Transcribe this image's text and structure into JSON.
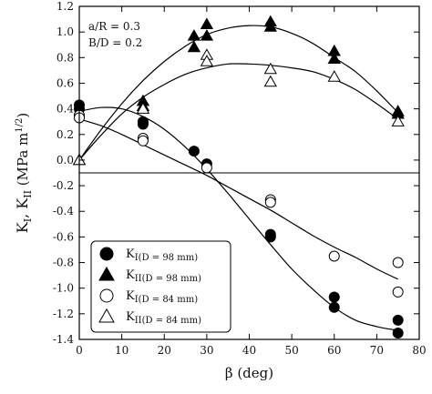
{
  "chart_data": {
    "type": "scatter",
    "title": "",
    "xlabel": "β (deg)",
    "ylabel": "K_I, K_II (MPa m^1/2)",
    "xlim": [
      0,
      80
    ],
    "ylim": [
      -1.4,
      1.2
    ],
    "xticks": [
      0,
      10,
      20,
      30,
      40,
      50,
      60,
      70,
      80
    ],
    "yticks": [
      -1.4,
      -1.2,
      -1.0,
      -0.8,
      -0.6,
      -0.4,
      -0.2,
      0.0,
      0.2,
      0.4,
      0.6,
      0.8,
      1.0,
      1.2
    ],
    "ytick_labels": [
      "-1.4",
      "-1.2",
      "-1.0",
      "-0.8",
      "-0.6",
      "-0.4",
      "-0.2",
      "0.0",
      "0.2",
      "0.4",
      "0.6",
      "0.8",
      "1.0",
      "1.2"
    ],
    "reference_line_y": -0.1,
    "annotations": [
      "a/R = 0.3",
      "B/D = 0.2"
    ],
    "legend_position": "bottom-left",
    "series": [
      {
        "name": "K_I(D = 98 mm)",
        "marker": "filled-circle",
        "points": [
          [
            0,
            0.43
          ],
          [
            0,
            0.4
          ],
          [
            15,
            0.3
          ],
          [
            15,
            0.28
          ],
          [
            27,
            0.07
          ],
          [
            30,
            -0.03
          ],
          [
            45,
            -0.58
          ],
          [
            45,
            -0.6
          ],
          [
            60,
            -1.07
          ],
          [
            60,
            -1.15
          ],
          [
            75,
            -1.25
          ],
          [
            75,
            -1.35
          ]
        ],
        "fit": [
          [
            0,
            0.38
          ],
          [
            5,
            0.41
          ],
          [
            10,
            0.4
          ],
          [
            15,
            0.34
          ],
          [
            20,
            0.24
          ],
          [
            25,
            0.1
          ],
          [
            30,
            -0.07
          ],
          [
            35,
            -0.26
          ],
          [
            40,
            -0.46
          ],
          [
            45,
            -0.66
          ],
          [
            50,
            -0.85
          ],
          [
            55,
            -1.01
          ],
          [
            60,
            -1.15
          ],
          [
            65,
            -1.25
          ],
          [
            70,
            -1.3
          ],
          [
            75,
            -1.33
          ]
        ]
      },
      {
        "name": "K_II(D = 98 mm)",
        "marker": "filled-triangle",
        "points": [
          [
            0,
            0.0
          ],
          [
            15,
            0.46
          ],
          [
            15,
            0.42
          ],
          [
            27,
            0.97
          ],
          [
            27,
            0.88
          ],
          [
            30,
            1.06
          ],
          [
            30,
            0.97
          ],
          [
            45,
            1.08
          ],
          [
            45,
            1.04
          ],
          [
            60,
            0.85
          ],
          [
            60,
            0.79
          ],
          [
            75,
            0.38
          ],
          [
            75,
            0.36
          ]
        ],
        "fit": [
          [
            0,
            0.0
          ],
          [
            5,
            0.23
          ],
          [
            10,
            0.44
          ],
          [
            15,
            0.62
          ],
          [
            20,
            0.77
          ],
          [
            25,
            0.89
          ],
          [
            30,
            0.98
          ],
          [
            35,
            1.03
          ],
          [
            40,
            1.05
          ],
          [
            45,
            1.04
          ],
          [
            50,
            0.99
          ],
          [
            55,
            0.91
          ],
          [
            60,
            0.8
          ],
          [
            65,
            0.69
          ],
          [
            70,
            0.54
          ],
          [
            75,
            0.37
          ]
        ]
      },
      {
        "name": "K_I(D = 84 mm)",
        "marker": "open-circle",
        "points": [
          [
            0,
            0.35
          ],
          [
            0,
            0.33
          ],
          [
            15,
            0.17
          ],
          [
            15,
            0.15
          ],
          [
            30,
            -0.06
          ],
          [
            45,
            -0.31
          ],
          [
            45,
            -0.33
          ],
          [
            60,
            -0.75
          ],
          [
            75,
            -0.8
          ],
          [
            75,
            -1.03
          ]
        ],
        "fit": [
          [
            0,
            0.32
          ],
          [
            5,
            0.27
          ],
          [
            10,
            0.2
          ],
          [
            15,
            0.12
          ],
          [
            20,
            0.04
          ],
          [
            25,
            -0.04
          ],
          [
            30,
            -0.12
          ],
          [
            35,
            -0.21
          ],
          [
            40,
            -0.3
          ],
          [
            45,
            -0.39
          ],
          [
            50,
            -0.49
          ],
          [
            55,
            -0.59
          ],
          [
            60,
            -0.68
          ],
          [
            65,
            -0.76
          ],
          [
            70,
            -0.85
          ],
          [
            75,
            -0.93
          ]
        ]
      },
      {
        "name": "K_II(D = 84 mm)",
        "marker": "open-triangle",
        "points": [
          [
            0,
            0.0
          ],
          [
            15,
            0.4
          ],
          [
            30,
            0.82
          ],
          [
            30,
            0.77
          ],
          [
            45,
            0.71
          ],
          [
            45,
            0.61
          ],
          [
            60,
            0.65
          ],
          [
            75,
            0.3
          ]
        ],
        "fit": [
          [
            0,
            0.0
          ],
          [
            5,
            0.19
          ],
          [
            10,
            0.36
          ],
          [
            15,
            0.49
          ],
          [
            20,
            0.59
          ],
          [
            25,
            0.67
          ],
          [
            30,
            0.72
          ],
          [
            35,
            0.75
          ],
          [
            40,
            0.75
          ],
          [
            45,
            0.74
          ],
          [
            50,
            0.72
          ],
          [
            55,
            0.69
          ],
          [
            60,
            0.63
          ],
          [
            65,
            0.55
          ],
          [
            70,
            0.44
          ],
          [
            75,
            0.32
          ]
        ]
      }
    ],
    "legend": [
      {
        "main": "K",
        "sub": "I(D = 98 mm)",
        "marker": "filled-circle"
      },
      {
        "main": "K",
        "sub": "II(D = 98 mm)",
        "marker": "filled-triangle"
      },
      {
        "main": "K",
        "sub": "I(D = 84 mm)",
        "marker": "open-circle"
      },
      {
        "main": "K",
        "sub": "II(D = 84 mm)",
        "marker": "open-triangle"
      }
    ]
  },
  "ylabel_parts": {
    "k1": "K",
    "k1_sub": "I",
    "sep": ",  ",
    "k2": "K",
    "k2_sub": "II",
    "unit": " (MPa m",
    "exp": "1/2",
    "close": ")"
  }
}
